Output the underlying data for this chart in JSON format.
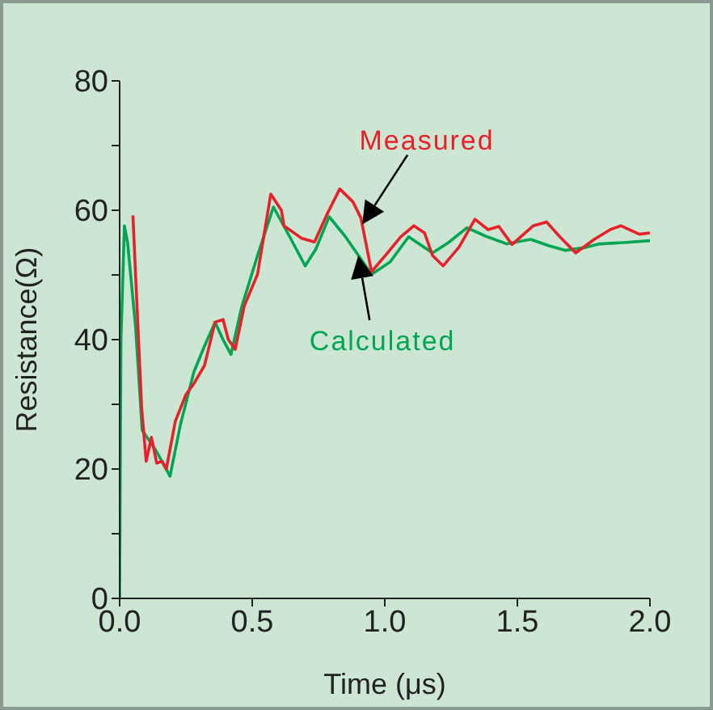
{
  "chart_data": {
    "type": "line",
    "xlabel": "Time (μs)",
    "ylabel": "Resistance(Ω)",
    "xlim": [
      0,
      2
    ],
    "ylim": [
      0,
      80
    ],
    "xticks": [
      {
        "value": 0,
        "label": "0.0"
      },
      {
        "value": 0.5,
        "label": "0.5"
      },
      {
        "value": 1,
        "label": "1.0"
      },
      {
        "value": 1.5,
        "label": "1.5"
      },
      {
        "value": 2,
        "label": "2.0"
      }
    ],
    "yticks": [
      0,
      {
        "value": 10,
        "label": null
      },
      20,
      {
        "value": 30,
        "label": null
      },
      40,
      {
        "value": 50,
        "label": null
      },
      60,
      {
        "value": 70,
        "label": null
      },
      80
    ],
    "marker": "none",
    "line_style": "solid",
    "series": [
      {
        "color": "#00a651",
        "x": [
          0,
          0.005,
          0.018,
          0.03,
          0.06,
          0.085,
          0.135,
          0.19,
          0.23,
          0.28,
          0.32,
          0.36,
          0.39,
          0.42,
          0.46,
          0.52,
          0.58,
          0.64,
          0.7,
          0.74,
          0.79,
          0.85,
          0.95,
          1.02,
          1.09,
          1.18,
          1.24,
          1.31,
          1.38,
          1.46,
          1.55,
          1.62,
          1.68,
          1.75,
          1.81,
          1.9,
          2.0
        ],
        "values": [
          0,
          40,
          57.6,
          55,
          42,
          26,
          23,
          18.9,
          27,
          35,
          39,
          42.7,
          40,
          37.7,
          45,
          53,
          60.5,
          56,
          51.4,
          54,
          59,
          56,
          50.1,
          52,
          55.9,
          53.4,
          55,
          57.3,
          56,
          54.8,
          55.5,
          54.5,
          53.8,
          54.2,
          54.8,
          55,
          55.3
        ]
      },
      {
        "color": "#e8202a",
        "x": [
          0.05,
          0.083,
          0.1,
          0.12,
          0.14,
          0.16,
          0.176,
          0.21,
          0.25,
          0.28,
          0.32,
          0.36,
          0.39,
          0.41,
          0.436,
          0.47,
          0.52,
          0.57,
          0.61,
          0.62,
          0.685,
          0.735,
          0.78,
          0.83,
          0.88,
          0.91,
          0.95,
          1.01,
          1.06,
          1.11,
          1.15,
          1.18,
          1.22,
          1.28,
          1.34,
          1.39,
          1.43,
          1.48,
          1.56,
          1.61,
          1.66,
          1.72,
          1.79,
          1.85,
          1.89,
          1.96,
          2.0
        ],
        "values": [
          59.2,
          29.5,
          21.2,
          24.9,
          20.9,
          21.2,
          20,
          27.4,
          31.5,
          33.2,
          36,
          42.7,
          43.1,
          40,
          38.5,
          45.2,
          50.1,
          62.5,
          60,
          57.6,
          55.7,
          55.1,
          59.2,
          63.3,
          61.3,
          58.8,
          50.5,
          53.4,
          55.9,
          57.6,
          56.5,
          53,
          51.4,
          54.3,
          58.6,
          57,
          57.5,
          54.7,
          57.6,
          58.2,
          55.9,
          53.4,
          55.5,
          57,
          57.6,
          56.3,
          56.5
        ]
      }
    ],
    "annotations": [
      {
        "text": "Measured",
        "x": 0.915,
        "y": 57.8
      },
      {
        "text": "Calculated",
        "x": 0.9,
        "y": 53
      }
    ]
  }
}
